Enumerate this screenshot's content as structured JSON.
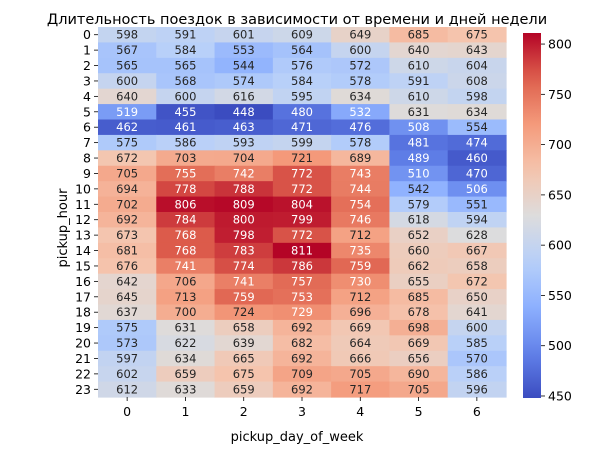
{
  "chart_data": {
    "type": "heatmap",
    "title": "Длительность поездок в зависимости от времени и дней недели",
    "xlabel": "pickup_day_of_week",
    "ylabel": "pickup_hour",
    "x_categories": [
      "0",
      "1",
      "2",
      "3",
      "4",
      "5",
      "6"
    ],
    "y_categories": [
      "0",
      "1",
      "2",
      "3",
      "4",
      "5",
      "6",
      "7",
      "8",
      "9",
      "10",
      "11",
      "12",
      "13",
      "14",
      "15",
      "16",
      "17",
      "18",
      "19",
      "20",
      "21",
      "22",
      "23"
    ],
    "values": [
      [
        598,
        591,
        601,
        609,
        649,
        685,
        675
      ],
      [
        567,
        584,
        553,
        564,
        600,
        640,
        643
      ],
      [
        565,
        565,
        544,
        576,
        572,
        610,
        604
      ],
      [
        600,
        568,
        574,
        584,
        578,
        591,
        608
      ],
      [
        640,
        600,
        616,
        595,
        634,
        610,
        598
      ],
      [
        519,
        455,
        448,
        480,
        532,
        631,
        634
      ],
      [
        462,
        461,
        463,
        471,
        476,
        508,
        554
      ],
      [
        575,
        586,
        593,
        599,
        578,
        481,
        474
      ],
      [
        672,
        703,
        704,
        721,
        689,
        489,
        460
      ],
      [
        705,
        755,
        742,
        772,
        743,
        510,
        470
      ],
      [
        694,
        778,
        788,
        772,
        744,
        542,
        506
      ],
      [
        702,
        806,
        809,
        804,
        754,
        579,
        551
      ],
      [
        692,
        784,
        800,
        799,
        746,
        618,
        594
      ],
      [
        673,
        768,
        798,
        772,
        712,
        652,
        628
      ],
      [
        681,
        768,
        783,
        811,
        735,
        660,
        667
      ],
      [
        676,
        741,
        774,
        786,
        759,
        662,
        658
      ],
      [
        642,
        706,
        741,
        757,
        730,
        655,
        672
      ],
      [
        645,
        713,
        759,
        753,
        712,
        685,
        650
      ],
      [
        637,
        700,
        724,
        729,
        696,
        678,
        641
      ],
      [
        575,
        631,
        658,
        692,
        669,
        698,
        600
      ],
      [
        573,
        622,
        639,
        682,
        664,
        669,
        585
      ],
      [
        597,
        634,
        665,
        692,
        666,
        656,
        570
      ],
      [
        602,
        659,
        675,
        709,
        705,
        690,
        586
      ],
      [
        612,
        633,
        659,
        692,
        717,
        705,
        596
      ]
    ],
    "colormap": "coolwarm",
    "vmin": 448,
    "vmax": 811,
    "colorbar_ticks": [
      "450",
      "500",
      "550",
      "600",
      "650",
      "700",
      "750",
      "800"
    ],
    "annotations": true
  }
}
